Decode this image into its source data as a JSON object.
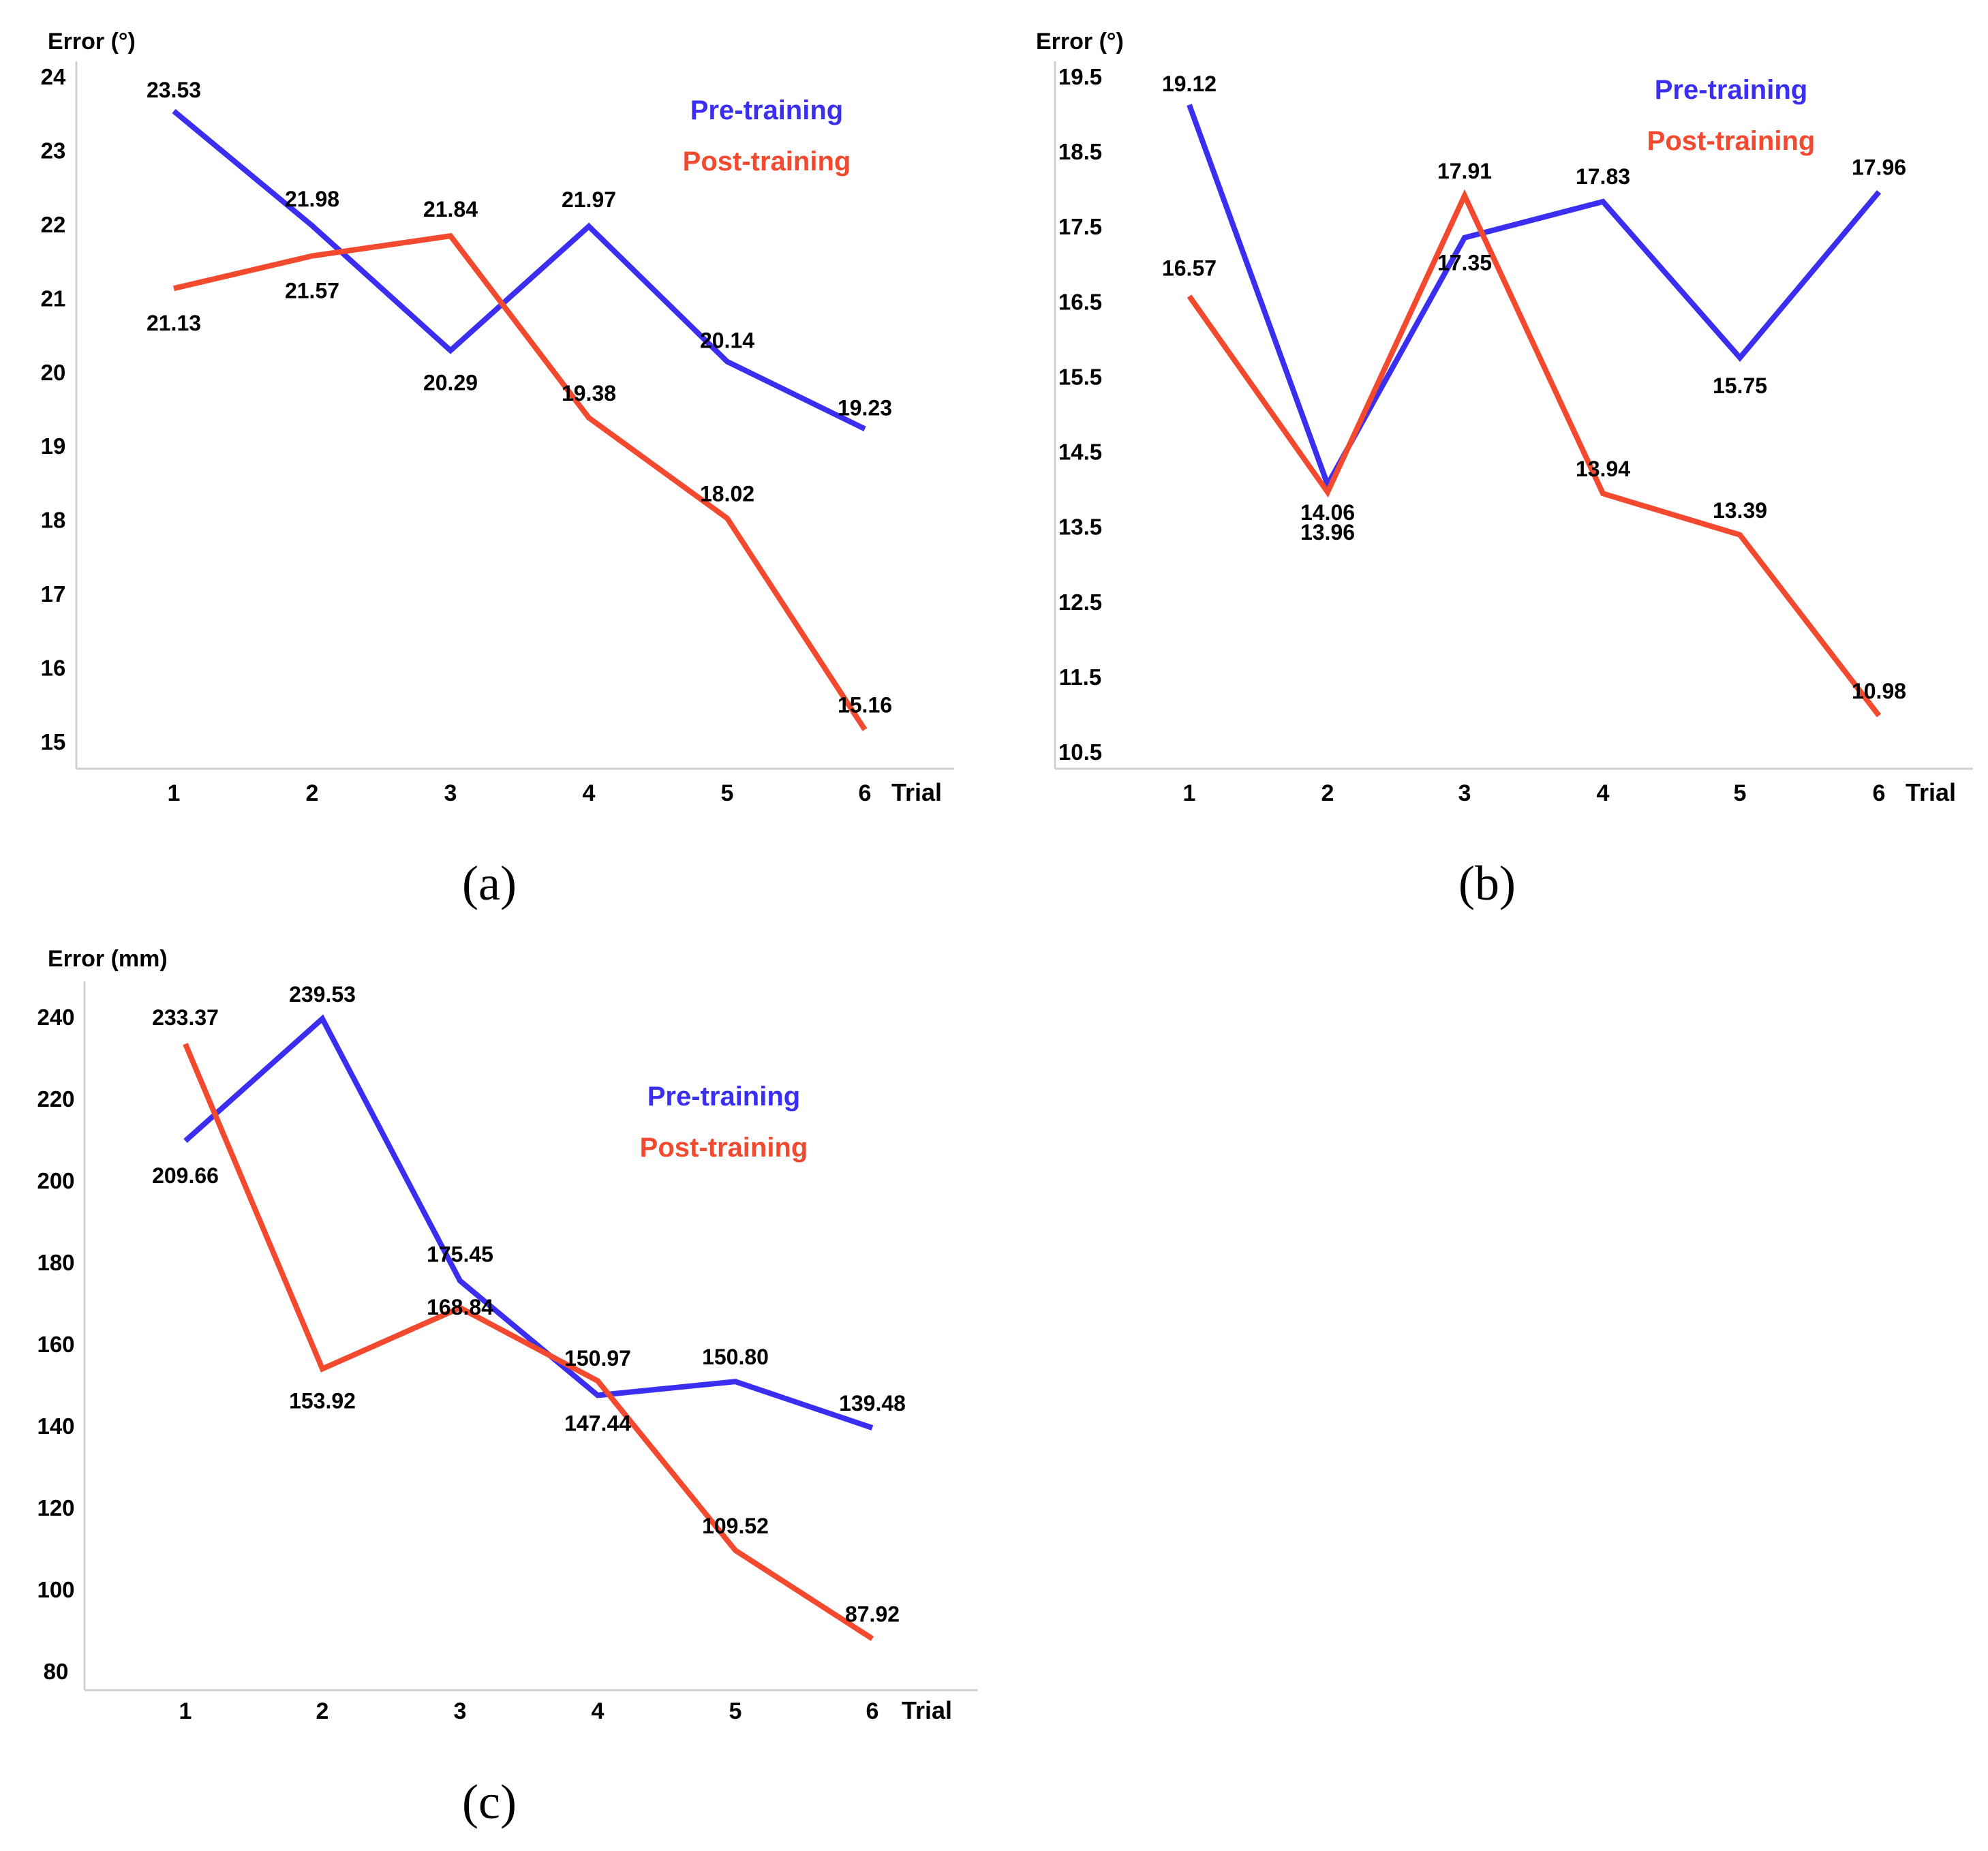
{
  "figure": {
    "colors": {
      "pre": "#3a2ff0",
      "post": "#f2492f",
      "axis": "#d0d0d0",
      "text": "#000000"
    }
  },
  "chart_data": [
    {
      "type": "line",
      "caption": "(a)",
      "ylabel": "Error (°)",
      "xlabel": "Trial",
      "categories": [
        "1",
        "2",
        "3",
        "4",
        "5",
        "6"
      ],
      "ylim": [
        14.6,
        24.4
      ],
      "yticks": [
        "24",
        "23",
        "22",
        "21",
        "20",
        "19",
        "18",
        "17",
        "16",
        "15"
      ],
      "legend": [
        "Pre-training",
        "Post-training"
      ],
      "series": [
        {
          "name": "Pre-training",
          "values": [
            23.53,
            21.98,
            20.29,
            21.97,
            20.14,
            19.23
          ],
          "labels": [
            "23.53",
            "21.98",
            "20.29",
            "21.97",
            "20.14",
            "19.23"
          ]
        },
        {
          "name": "Post-training",
          "values": [
            21.13,
            21.57,
            21.84,
            19.38,
            18.02,
            15.16
          ],
          "labels": [
            "21.13",
            "21.57",
            "21.84",
            "19.38",
            "18.02",
            "15.16"
          ]
        }
      ]
    },
    {
      "type": "line",
      "caption": "(b)",
      "ylabel": "Error (°)",
      "xlabel": "Trial",
      "categories": [
        "1",
        "2",
        "3",
        "4",
        "5",
        "6"
      ],
      "ylim": [
        10.2,
        19.8
      ],
      "yticks": [
        "19.5",
        "18.5",
        "17.5",
        "16.5",
        "15.5",
        "14.5",
        "13.5",
        "12.5",
        "11.5",
        "10.5"
      ],
      "legend": [
        "Pre-training",
        "Post-training"
      ],
      "series": [
        {
          "name": "Pre-training",
          "values": [
            19.12,
            14.06,
            17.35,
            17.83,
            15.75,
            17.96
          ],
          "labels": [
            "19.12",
            "14.06",
            "17.35",
            "17.83",
            "15.75",
            "17.96"
          ]
        },
        {
          "name": "Post-training",
          "values": [
            16.57,
            13.96,
            17.91,
            13.94,
            13.39,
            10.98
          ],
          "labels": [
            "16.57",
            "13.96",
            "17.91",
            "13.94",
            "13.39",
            "10.98"
          ]
        }
      ]
    },
    {
      "type": "line",
      "caption": "(c)",
      "ylabel": "Error (mm)",
      "xlabel": "Trial",
      "categories": [
        "1",
        "2",
        "3",
        "4",
        "5",
        "6"
      ],
      "ylim": [
        75,
        245
      ],
      "yticks": [
        "240",
        "220",
        "200",
        "180",
        "160",
        "140",
        "120",
        "100",
        "80"
      ],
      "legend": [
        "Pre-training",
        "Post-training"
      ],
      "series": [
        {
          "name": "Pre-training",
          "values": [
            209.66,
            239.53,
            175.45,
            147.44,
            150.8,
            139.48
          ],
          "labels": [
            "209.66",
            "239.53",
            "175.45",
            "147.44",
            "150.80",
            "139.48"
          ]
        },
        {
          "name": "Post-training",
          "values": [
            233.37,
            153.92,
            168.84,
            150.97,
            109.52,
            87.92
          ],
          "labels": [
            "233.37",
            "153.92",
            "168.84",
            "150.97",
            "109.52",
            "87.92"
          ]
        }
      ]
    }
  ]
}
